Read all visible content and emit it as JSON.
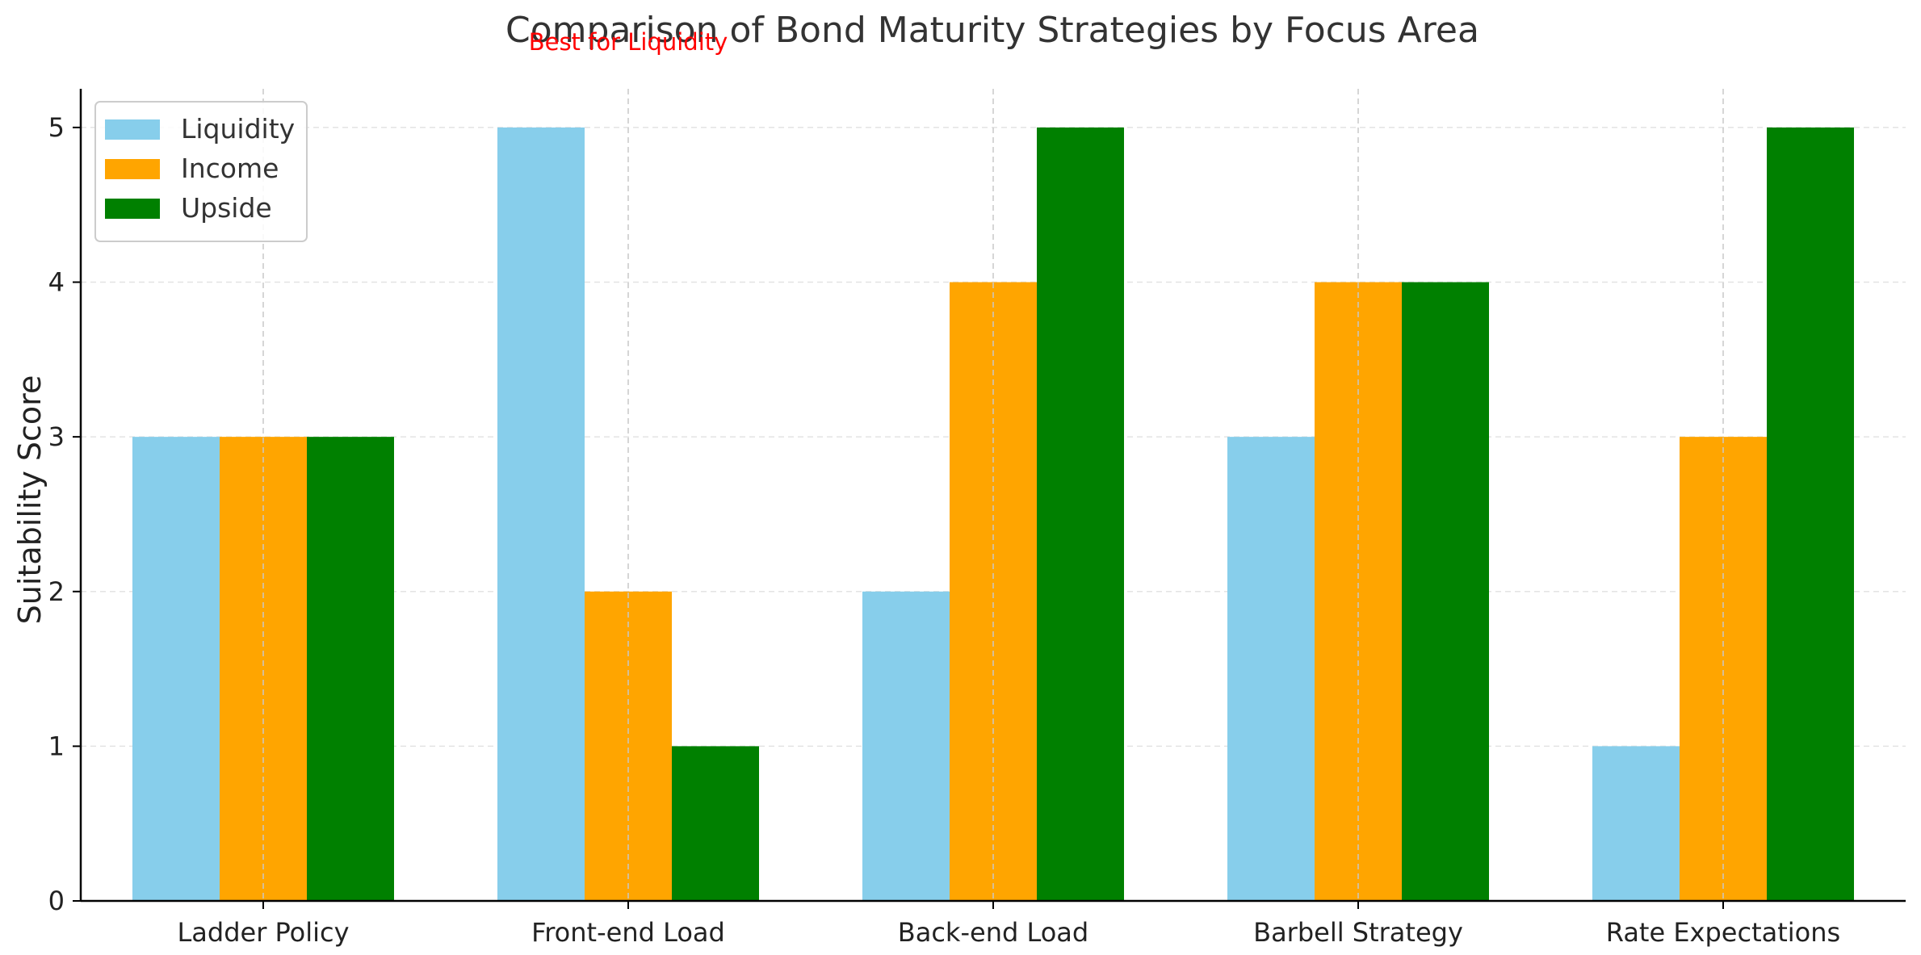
{
  "chart_data": {
    "type": "bar",
    "title": "Comparison of Bond Maturity Strategies by Focus Area",
    "xlabel": "",
    "ylabel": "Suitability Score",
    "categories": [
      "Ladder Policy",
      "Front-end Load",
      "Back-end Load",
      "Barbell Strategy",
      "Rate Expectations"
    ],
    "series": [
      {
        "name": "Liquidity",
        "values": [
          3,
          5,
          2,
          3,
          1
        ],
        "color": "#87CEEB"
      },
      {
        "name": "Income",
        "values": [
          3,
          2,
          4,
          4,
          3
        ],
        "color": "#FFA500"
      },
      {
        "name": "Upside",
        "values": [
          3,
          1,
          5,
          4,
          5
        ],
        "color": "#008000"
      }
    ],
    "ylim": [
      0,
      5.25
    ],
    "yticks": [
      0,
      1,
      2,
      3,
      4,
      5
    ],
    "grid": true,
    "legend_position": "top-left",
    "annotations": [
      {
        "text": "Best for Liquidity",
        "category": "Front-end Load",
        "color": "#FF0000"
      }
    ]
  }
}
